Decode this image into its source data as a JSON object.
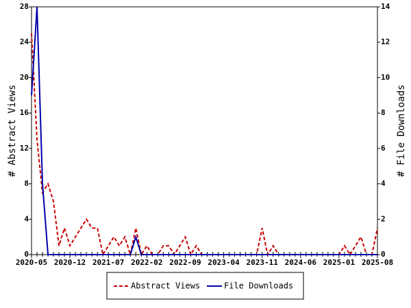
{
  "chart_data": {
    "type": "line",
    "categories": [
      "2020-05",
      null,
      null,
      null,
      null,
      null,
      null,
      "2020-12",
      null,
      null,
      null,
      null,
      null,
      null,
      "2021-07",
      null,
      null,
      null,
      null,
      null,
      null,
      "2022-02",
      null,
      null,
      null,
      null,
      null,
      null,
      "2022-09",
      null,
      null,
      null,
      null,
      null,
      null,
      "2023-04",
      null,
      null,
      null,
      null,
      null,
      null,
      "2023-11",
      null,
      null,
      null,
      null,
      null,
      null,
      "2024-06",
      null,
      null,
      null,
      null,
      null,
      null,
      "2025-01",
      null,
      null,
      null,
      null,
      null,
      null,
      "2025-08"
    ],
    "ylabel": "# Abstract Views",
    "y2label": "# File Downloads",
    "ylim": [
      0,
      28
    ],
    "yticks": [
      0,
      4,
      8,
      12,
      16,
      20,
      24,
      28
    ],
    "y2lim": [
      0,
      14
    ],
    "y2ticks": [
      0,
      2,
      4,
      6,
      8,
      10,
      12,
      14
    ],
    "legend": "bottom",
    "series": [
      {
        "name": "Abstract Views",
        "color": "#cc0000",
        "dashed": true,
        "values": [
          25,
          13,
          7,
          8,
          6,
          1,
          3,
          1,
          2,
          3,
          4,
          3,
          3,
          0,
          1,
          2,
          1,
          2,
          0,
          3,
          0,
          1,
          0,
          0,
          1,
          1,
          0,
          1,
          2,
          0,
          1,
          0,
          0,
          0,
          0,
          0,
          0,
          0,
          0,
          0,
          0,
          0,
          3,
          0,
          1,
          0,
          0,
          0,
          0,
          0,
          0,
          0,
          0,
          0,
          0,
          0,
          0,
          1,
          0,
          1,
          2,
          0,
          0,
          3
        ]
      },
      {
        "name": "File Downloads",
        "color": "#0000aa",
        "dashed": false,
        "axis": "y2",
        "values": [
          9,
          14,
          4,
          0,
          0,
          0,
          0,
          0,
          0,
          0,
          0,
          0,
          0,
          0,
          0,
          0,
          0,
          0,
          0,
          1,
          0,
          0,
          0,
          0,
          0,
          0,
          0,
          0,
          0,
          0,
          0,
          0,
          0,
          0,
          0,
          0,
          0,
          0,
          0,
          0,
          0,
          0,
          0,
          0,
          0,
          0,
          0,
          0,
          0,
          0,
          0,
          0,
          0,
          0,
          0,
          0,
          0,
          0,
          0,
          0,
          0,
          0,
          0,
          0
        ]
      }
    ]
  }
}
